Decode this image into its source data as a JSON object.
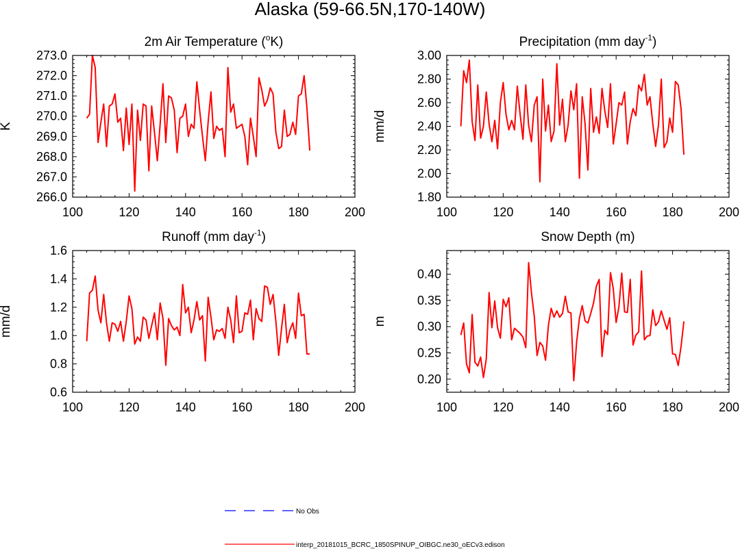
{
  "figure": {
    "title": "Alaska (59-66.5N,170-140W)"
  },
  "colors": {
    "model": "#ff0000",
    "obs": "#0000ff",
    "axis": "#000000"
  },
  "legend": {
    "items": [
      {
        "label": "No Obs",
        "style": "dashed",
        "color": "#0000ff"
      },
      {
        "label": "interp_20181015_BCRC_1850SPINUP_OIBGC.ne30_oECv3.edison",
        "style": "solid",
        "color": "#ff0000"
      }
    ]
  },
  "chart_data": [
    {
      "type": "line",
      "title": "2m Air Temperature (",
      "title_sup": "o",
      "title_after": "K)",
      "ylabel": "K",
      "xlim": [
        100,
        200
      ],
      "ylim": [
        266.0,
        273.0
      ],
      "xticks": [
        100,
        120,
        140,
        160,
        180,
        200
      ],
      "yticks": [
        266.0,
        267.0,
        268.0,
        269.0,
        270.0,
        271.0,
        272.0,
        273.0
      ],
      "ytick_labels": [
        "266.0",
        "267.0",
        "268.0",
        "269.0",
        "270.0",
        "271.0",
        "272.0",
        "273.0"
      ],
      "x_start": 105,
      "series": [
        {
          "values": [
            269.9,
            270.1,
            273.0,
            272.4,
            268.7,
            269.7,
            270.6,
            268.5,
            270.5,
            270.6,
            271.1,
            269.7,
            269.9,
            268.3,
            270.4,
            268.6,
            270.6,
            266.3,
            270.3,
            268.8,
            270.6,
            270.5,
            267.3,
            270.5,
            269.2,
            267.8,
            269.6,
            271.6,
            268.7,
            271.0,
            270.9,
            270.3,
            268.2,
            269.9,
            270.0,
            270.6,
            269.0,
            269.6,
            269.4,
            271.7,
            270.3,
            269.0,
            267.8,
            269.7,
            271.2,
            268.9,
            269.5,
            269.3,
            269.4,
            268.0,
            272.4,
            270.2,
            270.6,
            269.4,
            269.5,
            269.6,
            269.0,
            267.6,
            269.9,
            269.0,
            268.0,
            271.9,
            271.3,
            270.5,
            270.8,
            271.4,
            271.1,
            269.2,
            268.4,
            268.5,
            270.3,
            269.0,
            269.1,
            269.7,
            269.1,
            271.0,
            271.1,
            272.0,
            270.4,
            268.3
          ]
        }
      ]
    },
    {
      "type": "line",
      "title": "Precipitation (mm day",
      "title_sup": "-1",
      "title_after": ")",
      "ylabel": "mm/d",
      "xlim": [
        100,
        200
      ],
      "ylim": [
        1.8,
        3.0
      ],
      "xticks": [
        100,
        120,
        140,
        160,
        180,
        200
      ],
      "yticks": [
        1.8,
        2.0,
        2.2,
        2.4,
        2.6,
        2.8,
        3.0
      ],
      "ytick_labels": [
        "1.80",
        "2.00",
        "2.20",
        "2.40",
        "2.60",
        "2.80",
        "3.00"
      ],
      "x_start": 105,
      "series": [
        {
          "values": [
            2.4,
            2.87,
            2.77,
            2.96,
            2.44,
            2.28,
            2.75,
            2.3,
            2.4,
            2.69,
            2.42,
            2.27,
            2.45,
            2.21,
            2.6,
            2.77,
            2.5,
            2.37,
            2.45,
            2.37,
            2.74,
            2.5,
            2.29,
            2.75,
            2.41,
            2.27,
            2.58,
            2.65,
            1.93,
            2.8,
            2.36,
            2.58,
            2.27,
            2.36,
            2.93,
            2.41,
            2.63,
            2.27,
            2.41,
            2.7,
            2.54,
            2.76,
            1.96,
            2.65,
            2.42,
            2.03,
            2.72,
            2.35,
            2.48,
            2.34,
            2.72,
            2.53,
            2.39,
            2.76,
            2.25,
            2.42,
            2.6,
            2.58,
            2.69,
            2.25,
            2.44,
            2.55,
            2.49,
            2.75,
            2.7,
            2.84,
            2.58,
            2.65,
            2.42,
            2.23,
            2.41,
            2.8,
            2.22,
            2.27,
            2.47,
            2.35,
            2.78,
            2.75,
            2.55,
            2.16
          ]
        }
      ]
    },
    {
      "type": "line",
      "title": "Runoff (mm day",
      "title_sup": "-1",
      "title_after": ")",
      "ylabel": "mm/d",
      "xlim": [
        100,
        200
      ],
      "ylim": [
        0.6,
        1.6
      ],
      "xticks": [
        100,
        120,
        140,
        160,
        180,
        200
      ],
      "yticks": [
        0.6,
        0.8,
        1.0,
        1.2,
        1.4,
        1.6
      ],
      "ytick_labels": [
        "0.6",
        "0.8",
        "1.0",
        "1.2",
        "1.4",
        "1.6"
      ],
      "x_start": 105,
      "series": [
        {
          "values": [
            0.96,
            1.3,
            1.32,
            1.42,
            1.18,
            1.09,
            1.29,
            1.09,
            0.96,
            1.09,
            1.08,
            1.03,
            1.1,
            0.96,
            1.1,
            1.28,
            1.19,
            0.94,
            0.99,
            0.96,
            1.13,
            1.11,
            0.98,
            1.07,
            1.16,
            0.97,
            1.23,
            1.12,
            0.79,
            1.12,
            1.07,
            1.04,
            1.06,
            1.0,
            1.36,
            1.16,
            1.2,
            1.02,
            1.11,
            1.24,
            1.11,
            1.14,
            0.82,
            1.27,
            1.13,
            0.97,
            1.04,
            1.03,
            1.05,
            0.98,
            1.2,
            1.11,
            0.95,
            1.28,
            1.02,
            1.03,
            1.16,
            1.15,
            1.25,
            0.97,
            1.19,
            1.12,
            1.1,
            1.35,
            1.34,
            1.22,
            1.29,
            1.1,
            0.86,
            1.05,
            1.22,
            0.95,
            1.04,
            1.09,
            0.98,
            1.3,
            1.14,
            1.15,
            0.87,
            0.87
          ]
        }
      ]
    },
    {
      "type": "line",
      "title": "Snow Depth (m)",
      "title_sup": "",
      "title_after": "",
      "ylabel": "m",
      "xlim": [
        100,
        200
      ],
      "ylim": [
        0.175,
        0.445
      ],
      "xticks": [
        100,
        120,
        140,
        160,
        180,
        200
      ],
      "yticks": [
        0.2,
        0.25,
        0.3,
        0.35,
        0.4
      ],
      "ytick_labels": [
        "0.20",
        "0.25",
        "0.30",
        "0.35",
        "0.40"
      ],
      "x_start": 105,
      "series": [
        {
          "values": [
            0.284,
            0.307,
            0.229,
            0.212,
            0.323,
            0.232,
            0.225,
            0.242,
            0.203,
            0.238,
            0.365,
            0.298,
            0.349,
            0.298,
            0.278,
            0.352,
            0.338,
            0.355,
            0.275,
            0.297,
            0.292,
            0.287,
            0.28,
            0.26,
            0.422,
            0.365,
            0.32,
            0.245,
            0.27,
            0.263,
            0.236,
            0.302,
            0.335,
            0.318,
            0.33,
            0.318,
            0.325,
            0.358,
            0.328,
            0.326,
            0.197,
            0.27,
            0.316,
            0.34,
            0.311,
            0.307,
            0.325,
            0.345,
            0.377,
            0.39,
            0.243,
            0.293,
            0.285,
            0.403,
            0.372,
            0.308,
            0.338,
            0.402,
            0.328,
            0.327,
            0.39,
            0.265,
            0.284,
            0.29,
            0.406,
            0.275,
            0.282,
            0.283,
            0.332,
            0.302,
            0.309,
            0.33,
            0.312,
            0.295,
            0.317,
            0.248,
            0.247,
            0.226,
            0.262,
            0.31
          ]
        }
      ]
    }
  ]
}
